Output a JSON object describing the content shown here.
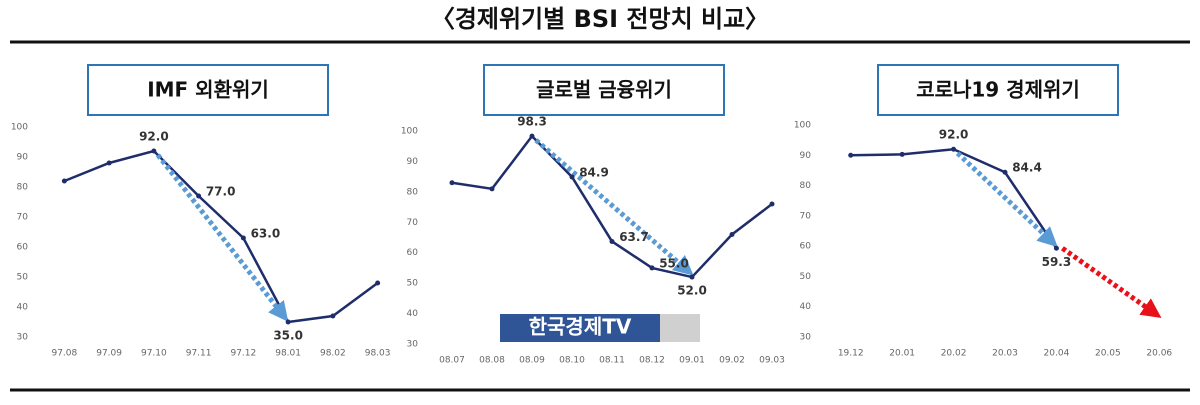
{
  "title": "〈경제위기별 BSI 전망치 비교〉",
  "watermark": "한국경제TV",
  "chart_data": [
    {
      "type": "line",
      "title": "IMF 외환위기",
      "color": "#1f2d6b",
      "categories": [
        "97.08",
        "97.09",
        "97.10",
        "97.11",
        "97.12",
        "98.01",
        "98.02",
        "98.03"
      ],
      "values": [
        82,
        88,
        92,
        77,
        63,
        35,
        37,
        48
      ],
      "value_labels": [
        null,
        null,
        "92.0",
        "77.0",
        "63.0",
        "35.0",
        null,
        null
      ],
      "ylim": [
        30,
        100
      ],
      "yticks": [
        30,
        40,
        50,
        60,
        70,
        80,
        90,
        100
      ]
    },
    {
      "type": "line",
      "title": "글로벌 금융위기",
      "color": "#1f2d6b",
      "categories": [
        "08.07",
        "08.08",
        "08.09",
        "08.10",
        "08.11",
        "08.12",
        "09.01",
        "09.02",
        "09.03"
      ],
      "values": [
        83,
        81,
        98.3,
        84.9,
        63.7,
        55,
        52,
        66,
        76
      ],
      "value_labels": [
        null,
        null,
        "98.3",
        "84.9",
        "63.7",
        "55.0",
        "52.0",
        null,
        null
      ],
      "ylim": [
        30,
        100
      ],
      "yticks": [
        30,
        40,
        50,
        60,
        70,
        80,
        90,
        100
      ]
    },
    {
      "type": "line",
      "title": "코로나19 경제위기",
      "color": "#1f2d6b",
      "categories": [
        "19.12",
        "20.01",
        "20.02",
        "20.03",
        "20.04",
        "20.05",
        "20.06"
      ],
      "values": [
        90,
        90.3,
        92,
        84.4,
        59.3,
        null,
        null
      ],
      "value_labels": [
        null,
        null,
        "92.0",
        "84.4",
        "59.3",
        null,
        null
      ],
      "ylim": [
        30,
        100
      ],
      "yticks": [
        30,
        40,
        50,
        60,
        70,
        80,
        90,
        100
      ]
    }
  ]
}
